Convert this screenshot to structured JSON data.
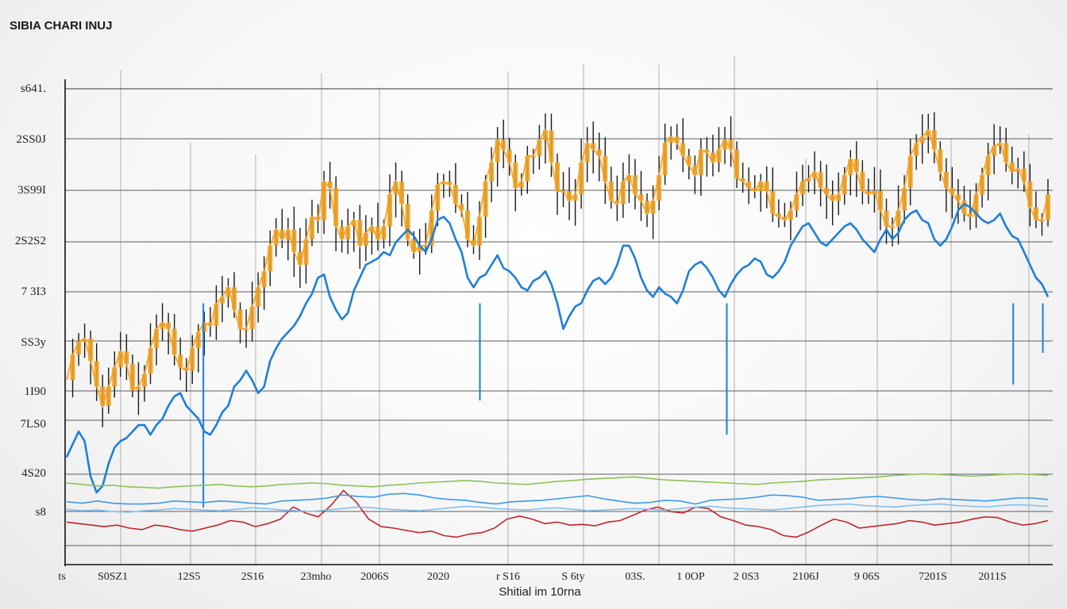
{
  "title": "SIBIA CHARI INUJ",
  "chart_data": {
    "type": "line",
    "title": "SIBIA CHARI INUJ",
    "xlabel": "Shitial im 10rna",
    "ylabel": "",
    "y_tick_labels": [
      "s641.",
      "2SS0J",
      "3S99I",
      "2S2S2",
      "7 3I3",
      "SS3y",
      "1I90",
      "7LS0",
      "4S20",
      "s8"
    ],
    "x_tick_labels": [
      "ts",
      "S0SZ1",
      "12S5",
      "2S16",
      "23mho",
      "2006S",
      "2020",
      "r S16",
      "S 6ty",
      "03S.",
      "1 0OP",
      "2 0S3",
      "2106J",
      "9 06S",
      "7201S",
      "2011S"
    ],
    "grid": true,
    "series": [
      {
        "style": "candlestick",
        "color": "#f0a020",
        "wick_color": "#1a1a1a",
        "values": [
          480,
          520,
          540,
          545,
          510,
          470,
          440,
          470,
          500,
          525,
          505,
          465,
          470,
          490,
          530,
          560,
          570,
          560,
          520,
          500,
          495,
          530,
          555,
          570,
          565,
          600,
          610,
          625,
          590,
          560,
          560,
          595,
          625,
          650,
          690,
          715,
          700,
          715,
          680,
          660,
          700,
          735,
          730,
          790,
          780,
          720,
          700,
          720,
          730,
          690,
          710,
          720,
          700,
          720,
          770,
          790,
          755,
          700,
          680,
          690,
          690,
          745,
          785,
          790,
          785,
          755,
          745,
          700,
          690,
          735,
          790,
          820,
          855,
          840,
          820,
          780,
          790,
          830,
          830,
          855,
          870,
          820,
          775,
          775,
          760,
          770,
          820,
          850,
          840,
          830,
          790,
          760,
          755,
          790,
          800,
          770,
          760,
          740,
          760,
          800,
          850,
          860,
          850,
          830,
          815,
          800,
          840,
          835,
          820,
          840,
          855,
          840,
          795,
          790,
          780,
          775,
          790,
          775,
          740,
          735,
          730,
          745,
          770,
          790,
          795,
          805,
          780,
          770,
          760,
          770,
          800,
          825,
          805,
          775,
          770,
          775,
          745,
          720,
          720,
          745,
          780,
          830,
          850,
          860,
          870,
          840,
          805,
          780,
          770,
          760,
          740,
          735,
          770,
          800,
          830,
          845,
          850,
          820,
          805,
          810,
          790,
          750,
          730,
          730,
          770
        ]
      },
      {
        "style": "line",
        "color": "#1e7fd8",
        "values": [
          360,
          380,
          400,
          385,
          330,
          305,
          315,
          350,
          375,
          385,
          390,
          400,
          410,
          410,
          395,
          410,
          420,
          440,
          455,
          460,
          440,
          430,
          420,
          400,
          395,
          410,
          430,
          440,
          470,
          480,
          495,
          480,
          460,
          470,
          510,
          530,
          545,
          555,
          565,
          580,
          600,
          615,
          640,
          645,
          610,
          590,
          575,
          585,
          620,
          640,
          660,
          665,
          670,
          680,
          675,
          695,
          705,
          715,
          705,
          690,
          680,
          700,
          730,
          735,
          725,
          700,
          680,
          640,
          625,
          640,
          645,
          660,
          675,
          655,
          650,
          640,
          625,
          620,
          635,
          640,
          650,
          630,
          600,
          560,
          580,
          595,
          600,
          620,
          635,
          640,
          630,
          640,
          660,
          690,
          690,
          670,
          640,
          620,
          610,
          625,
          615,
          610,
          600,
          620,
          650,
          660,
          665,
          655,
          640,
          620,
          610,
          630,
          645,
          655,
          660,
          670,
          665,
          645,
          640,
          650,
          665,
          690,
          705,
          720,
          725,
          710,
          695,
          690,
          700,
          710,
          720,
          725,
          715,
          700,
          690,
          680,
          700,
          715,
          700,
          710,
          730,
          740,
          745,
          730,
          725,
          700,
          690,
          700,
          720,
          745,
          755,
          750,
          740,
          730,
          725,
          730,
          740,
          720,
          705,
          700,
          680,
          660,
          640,
          630,
          610
        ]
      },
      {
        "style": "line",
        "color": "#c0262a",
        "values": [
          88,
          86,
          84,
          82,
          84,
          80,
          78,
          84,
          82,
          78,
          76,
          80,
          84,
          90,
          88,
          82,
          86,
          92,
          108,
          100,
          95,
          110,
          130,
          115,
          92,
          82,
          80,
          77,
          74,
          76,
          70,
          68,
          72,
          74,
          80,
          92,
          96,
          92,
          86,
          88,
          84,
          85,
          83,
          88,
          90,
          97,
          104,
          108,
          102,
          100,
          108,
          106,
          95,
          90,
          84,
          82,
          78,
          70,
          68,
          75,
          84,
          92,
          88,
          80,
          82,
          84,
          86,
          90,
          88,
          84,
          86,
          88,
          92,
          95,
          94,
          88,
          84,
          86,
          90
        ]
      },
      {
        "style": "line",
        "color": "#3d9ae6",
        "values": [
          115,
          113,
          116,
          113,
          112,
          112,
          113,
          116,
          115,
          114,
          116,
          115,
          113,
          112,
          116,
          117,
          118,
          120,
          124,
          122,
          121,
          125,
          126,
          124,
          120,
          118,
          117,
          114,
          112,
          115,
          116,
          117,
          119,
          121,
          123,
          119,
          116,
          113,
          114,
          117,
          116,
          112,
          117,
          118,
          119,
          121,
          124,
          123,
          121,
          117,
          118,
          119,
          121,
          122,
          120,
          118,
          117,
          119,
          118,
          117,
          116,
          118,
          120,
          120,
          118
        ]
      },
      {
        "style": "line",
        "color": "#7fc0f0",
        "values": [
          105,
          103,
          104,
          102,
          101,
          103,
          104,
          106,
          105,
          104,
          103,
          105,
          107,
          106,
          104,
          103,
          102,
          104,
          106,
          108,
          107,
          105,
          104,
          103,
          105,
          107,
          109,
          108,
          106,
          105,
          104,
          106,
          107,
          105,
          103,
          104,
          105,
          106,
          105,
          104,
          106,
          108,
          109,
          107,
          106,
          105,
          104,
          106,
          108,
          110,
          111,
          112,
          110,
          109,
          108,
          110,
          111,
          112,
          110,
          109,
          108,
          110,
          111,
          110,
          109
        ]
      },
      {
        "style": "line",
        "color": "#8cc257",
        "values": [
          140,
          138,
          136,
          137,
          135,
          134,
          133,
          135,
          136,
          137,
          138,
          136,
          135,
          136,
          138,
          139,
          140,
          139,
          137,
          136,
          135,
          137,
          138,
          140,
          141,
          142,
          143,
          142,
          140,
          139,
          138,
          140,
          142,
          143,
          145,
          146,
          147,
          148,
          146,
          144,
          143,
          142,
          141,
          140,
          139,
          138,
          140,
          141,
          142,
          144,
          145,
          146,
          147,
          148,
          150,
          151,
          152,
          151,
          150,
          149,
          150,
          151,
          152,
          151,
          150
        ]
      }
    ]
  }
}
